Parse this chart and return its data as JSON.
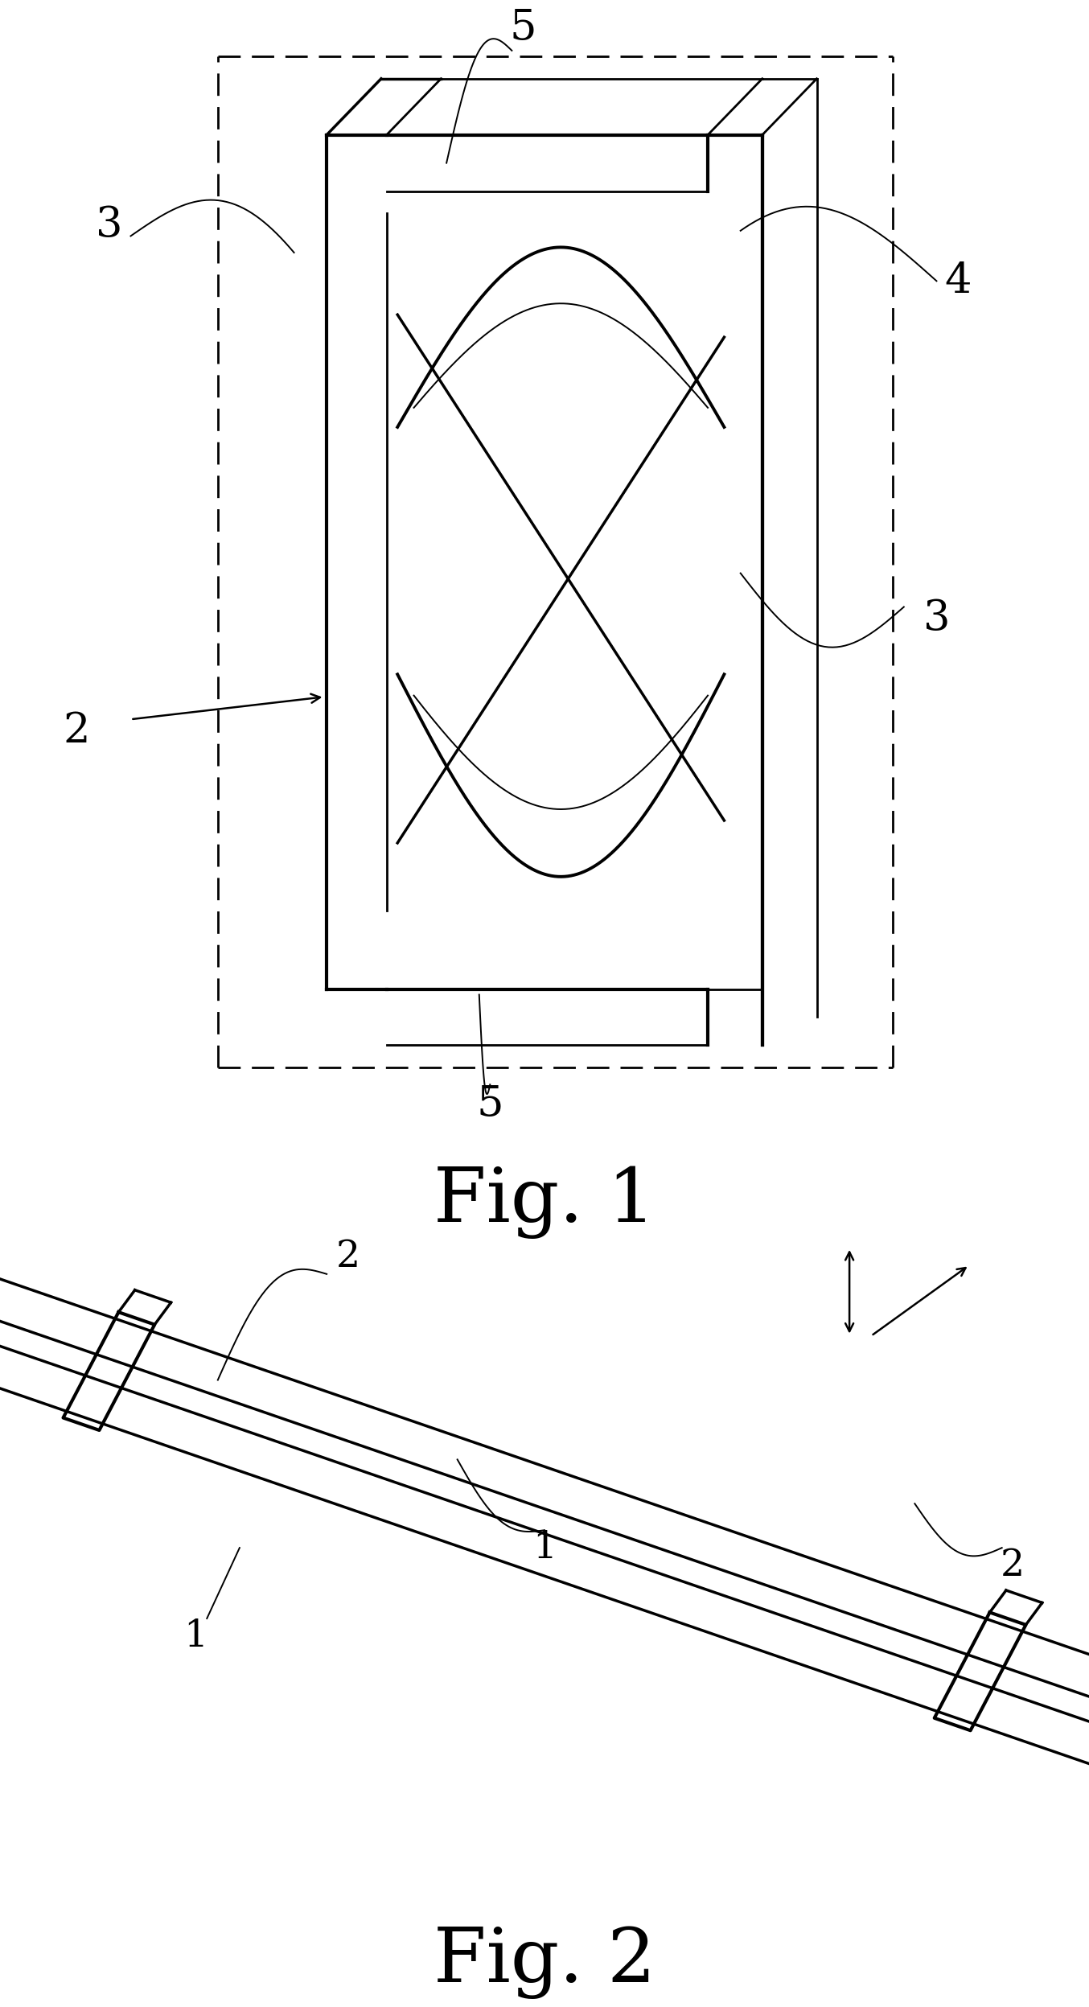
{
  "fig_width": 13.54,
  "fig_height": 24.95,
  "bg_color": "#ffffff",
  "line_color": "#000000",
  "fig1_title": "Fig. 1",
  "fig2_title": "Fig. 2",
  "label_fs": 34,
  "title_fs": 68
}
